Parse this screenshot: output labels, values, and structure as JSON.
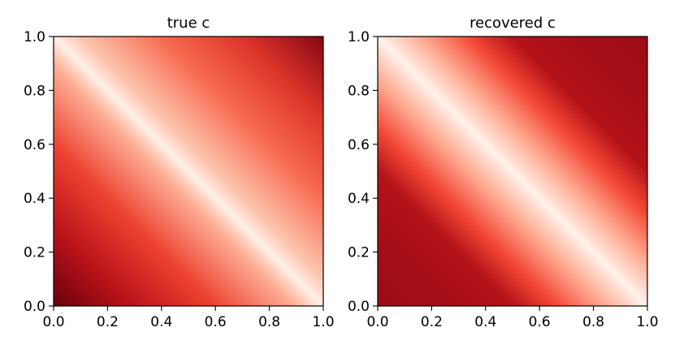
{
  "chart_data": [
    {
      "type": "heatmap",
      "title": "true c",
      "xlabel": "",
      "ylabel": "",
      "xlim": [
        0.0,
        1.0
      ],
      "ylim": [
        0.0,
        1.0
      ],
      "xticks": [
        "0.0",
        "0.2",
        "0.4",
        "0.6",
        "0.8",
        "1.0"
      ],
      "yticks": [
        "0.0",
        "0.2",
        "0.4",
        "0.6",
        "0.8",
        "1.0"
      ],
      "colormap": "Reds",
      "grid": false,
      "colormap_stops": [
        {
          "value": 0.0,
          "color": "#fff5f0"
        },
        {
          "value": 0.2,
          "color": "#fdcab5"
        },
        {
          "value": 0.4,
          "color": "#fc8a6a"
        },
        {
          "value": 0.6,
          "color": "#f24734"
        },
        {
          "value": 0.8,
          "color": "#bc141a"
        },
        {
          "value": 1.0,
          "color": "#67000d"
        }
      ],
      "gradient_profile": [
        {
          "offset": 0.0,
          "value": 1.0
        },
        {
          "offset": 0.15,
          "value": 0.8
        },
        {
          "offset": 0.3,
          "value": 0.62
        },
        {
          "offset": 0.45,
          "value": 0.28
        },
        {
          "offset": 0.5,
          "value": 0.03
        },
        {
          "offset": 0.55,
          "value": 0.22
        },
        {
          "offset": 0.7,
          "value": 0.5
        },
        {
          "offset": 0.85,
          "value": 0.68
        },
        {
          "offset": 1.0,
          "value": 0.93
        }
      ]
    },
    {
      "type": "heatmap",
      "title": "recovered c",
      "xlabel": "",
      "ylabel": "",
      "xlim": [
        0.0,
        1.0
      ],
      "ylim": [
        0.0,
        1.0
      ],
      "xticks": [
        "0.0",
        "0.2",
        "0.4",
        "0.6",
        "0.8",
        "1.0"
      ],
      "yticks": [
        "0.0",
        "0.2",
        "0.4",
        "0.6",
        "0.8",
        "1.0"
      ],
      "colormap": "Reds",
      "grid": false,
      "colormap_stops": [
        {
          "value": 0.0,
          "color": "#fff5f0"
        },
        {
          "value": 0.2,
          "color": "#fdcab5"
        },
        {
          "value": 0.4,
          "color": "#fc8a6a"
        },
        {
          "value": 0.6,
          "color": "#f24734"
        },
        {
          "value": 0.8,
          "color": "#bc141a"
        },
        {
          "value": 1.0,
          "color": "#67000d"
        }
      ],
      "gradient_profile": [
        {
          "offset": 0.0,
          "value": 0.88
        },
        {
          "offset": 0.15,
          "value": 0.85
        },
        {
          "offset": 0.25,
          "value": 0.82
        },
        {
          "offset": 0.33,
          "value": 0.6
        },
        {
          "offset": 0.42,
          "value": 0.3
        },
        {
          "offset": 0.5,
          "value": 0.02
        },
        {
          "offset": 0.58,
          "value": 0.3
        },
        {
          "offset": 0.67,
          "value": 0.6
        },
        {
          "offset": 0.75,
          "value": 0.82
        },
        {
          "offset": 0.85,
          "value": 0.85
        },
        {
          "offset": 1.0,
          "value": 0.88
        }
      ]
    }
  ]
}
